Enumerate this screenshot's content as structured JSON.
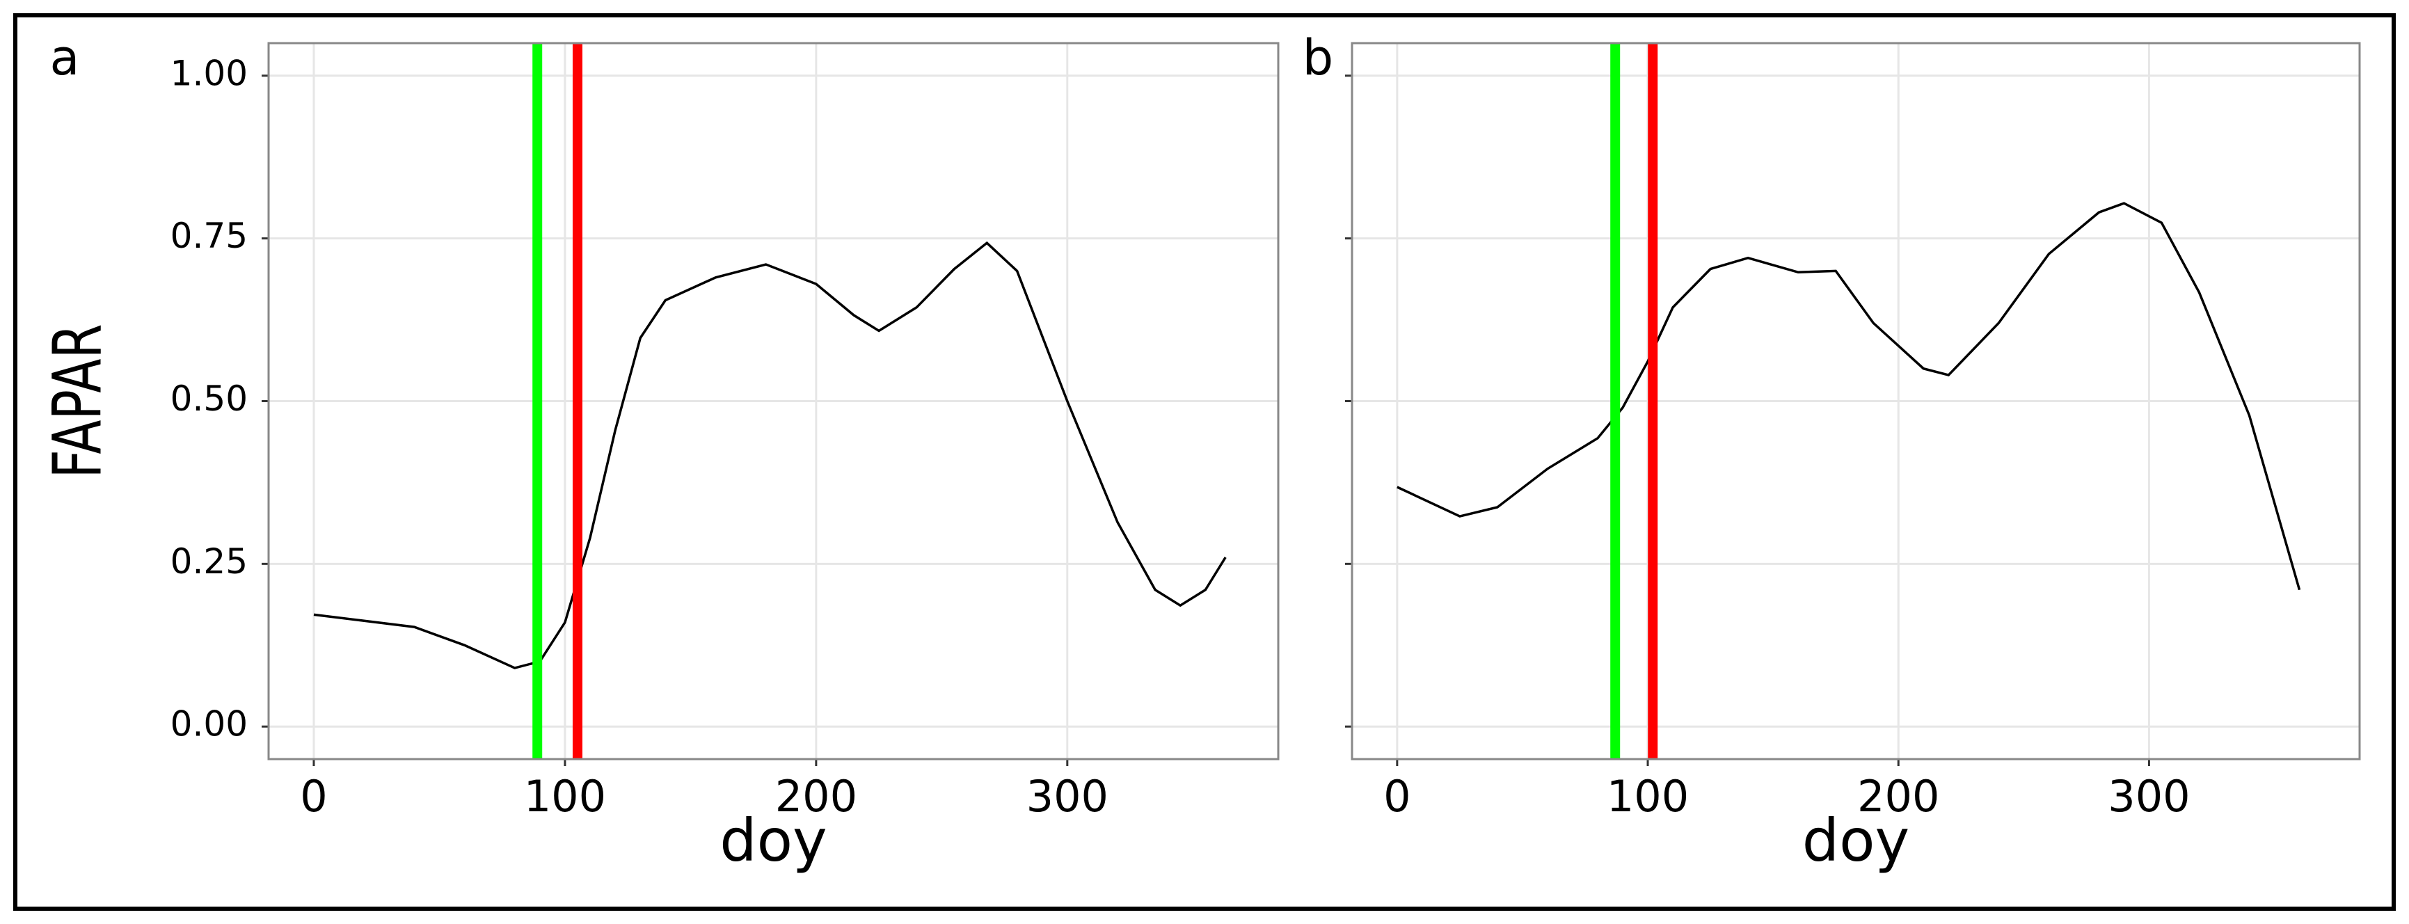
{
  "chart_data": [
    {
      "type": "line",
      "label": "a",
      "y_label": "FAPAR",
      "x_label": "doy",
      "x": [
        0,
        40,
        60,
        80,
        90,
        100,
        110,
        120,
        130,
        140,
        160,
        180,
        200,
        215,
        225,
        240,
        255,
        268,
        280,
        300,
        320,
        335,
        345,
        355,
        363
      ],
      "values": [
        0.172,
        0.153,
        0.125,
        0.09,
        0.1,
        0.16,
        0.29,
        0.455,
        0.597,
        0.655,
        0.69,
        0.71,
        0.68,
        0.632,
        0.608,
        0.644,
        0.703,
        0.743,
        0.7,
        0.5,
        0.314,
        0.21,
        0.186,
        0.21,
        0.26
      ],
      "color": "#000000",
      "vlines": [
        {
          "x": 89,
          "color": "#00ff00"
        },
        {
          "x": 105,
          "color": "#ff0000"
        }
      ],
      "xlim": [
        -18,
        384
      ],
      "xticks": [
        0,
        100,
        200,
        300
      ],
      "ylim": [
        -0.05,
        1.05
      ],
      "yticks": [
        {
          "value": 0,
          "label": "0.00"
        },
        {
          "value": 0.25,
          "label": "0.25"
        },
        {
          "value": 0.5,
          "label": "0.50"
        },
        {
          "value": 0.75,
          "label": "0.75"
        },
        {
          "value": 1,
          "label": "1.00"
        }
      ],
      "show_ytick_labels": true,
      "grid": true
    },
    {
      "type": "line",
      "label": "b",
      "x_label": "doy",
      "x": [
        0,
        25,
        40,
        60,
        80,
        90,
        100,
        110,
        125,
        140,
        160,
        175,
        190,
        210,
        220,
        240,
        260,
        280,
        290,
        305,
        320,
        340,
        360
      ],
      "values": [
        0.368,
        0.323,
        0.337,
        0.396,
        0.443,
        0.49,
        0.561,
        0.644,
        0.703,
        0.72,
        0.698,
        0.7,
        0.62,
        0.55,
        0.54,
        0.62,
        0.726,
        0.79,
        0.804,
        0.774,
        0.667,
        0.478,
        0.21
      ],
      "color": "#000000",
      "vlines": [
        {
          "x": 87,
          "color": "#00ff00"
        },
        {
          "x": 102,
          "color": "#ff0000"
        }
      ],
      "xlim": [
        -18,
        384
      ],
      "xticks": [
        0,
        100,
        200,
        300
      ],
      "ylim": [
        -0.05,
        1.05
      ],
      "yticks": [
        0,
        0.25,
        0.5,
        0.75,
        1
      ],
      "show_ytick_labels": false,
      "grid": true
    }
  ]
}
